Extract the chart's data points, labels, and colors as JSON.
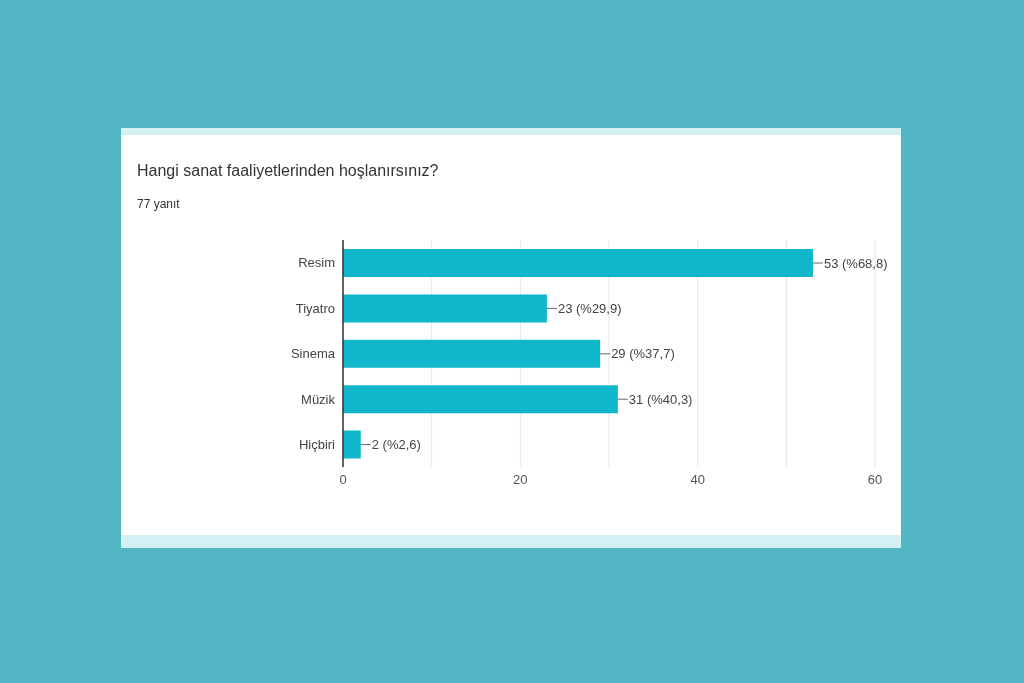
{
  "chart_data": {
    "type": "bar",
    "orientation": "horizontal",
    "title": "Hangi sanat faaliyetlerinden hoşlanırsınız?",
    "subtitle": "77 yanıt",
    "categories": [
      "Resim",
      "Tiyatro",
      "Sinema",
      "Müzik",
      "Hiçbiri"
    ],
    "values": [
      53,
      23,
      29,
      31,
      2
    ],
    "value_labels": [
      "53 (%68,8)",
      "23 (%29,9)",
      "29 (%37,7)",
      "31 (%40,3)",
      "2 (%2,6)"
    ],
    "color": "#10b6c9",
    "xlim": [
      0,
      60
    ],
    "xticks": [
      0,
      {
        "value": 10,
        "label": null
      },
      20,
      {
        "value": 30,
        "label": null
      },
      40,
      {
        "value": 50,
        "label": null
      },
      60
    ],
    "grid": "x"
  }
}
